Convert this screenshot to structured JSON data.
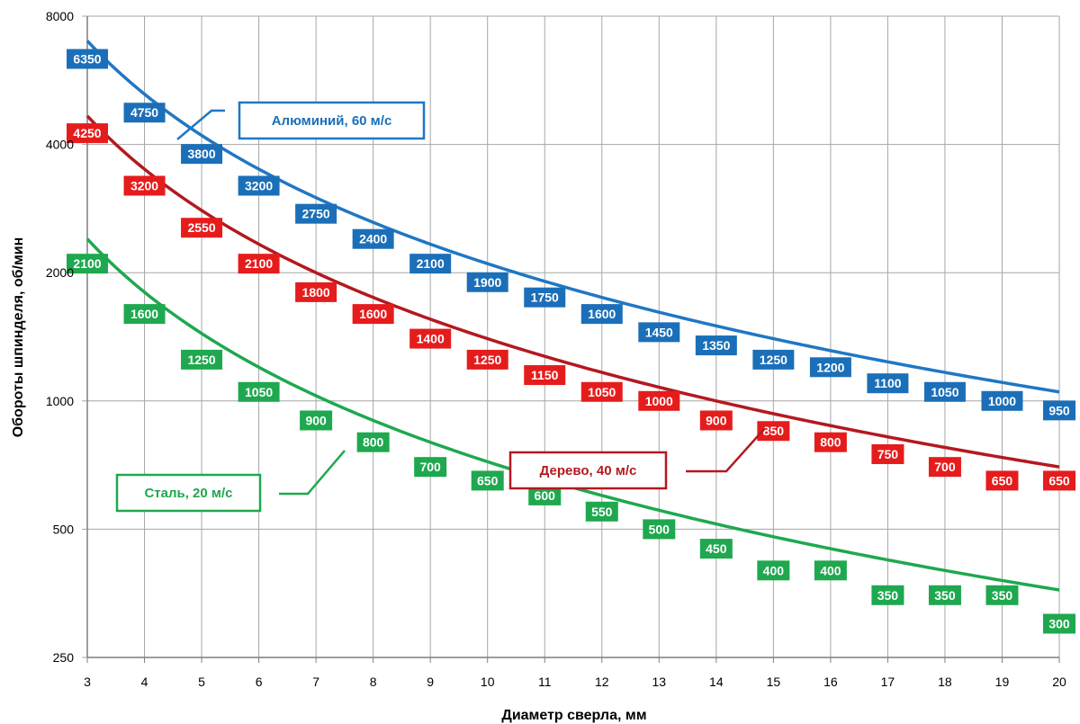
{
  "chart_data": {
    "type": "line",
    "xlabel": "Диаметр сверла, мм",
    "ylabel": "Обороты шпинделя, об/мин",
    "y_scale": "log",
    "x_ticks": [
      "3",
      "4",
      "5",
      "6",
      "7",
      "8",
      "9",
      "10",
      "11",
      "12",
      "13",
      "14",
      "15",
      "16",
      "17",
      "18",
      "19",
      "20"
    ],
    "y_ticks": [
      "250",
      "500",
      "1000",
      "2000",
      "4000",
      "8000"
    ],
    "xlim": [
      3,
      20
    ],
    "ylim": [
      250,
      8000
    ],
    "grid": true,
    "curve_x": [
      3,
      20
    ],
    "series": [
      {
        "name": "Алюминий, 60 м/с",
        "color": "#1f77c4",
        "label_color": "#1b6fb8",
        "curve_constant": 21000,
        "x": [
          3,
          4,
          5,
          6,
          7,
          8,
          9,
          10,
          11,
          12,
          13,
          14,
          15,
          16,
          17,
          18,
          19,
          20
        ],
        "values": [
          6350,
          4750,
          3800,
          3200,
          2750,
          2400,
          2100,
          1900,
          1750,
          1600,
          1450,
          1350,
          1250,
          1200,
          1100,
          1050,
          1000,
          950
        ],
        "labels": [
          "6350",
          "4750",
          "3800",
          "3200",
          "2750",
          "2400",
          "2100",
          "1900",
          "1750",
          "1600",
          "1450",
          "1350",
          "1250",
          "1200",
          "1100",
          "1050",
          "1000",
          "950"
        ]
      },
      {
        "name": "Дерево, 40 м/с",
        "color": "#b3191f",
        "label_color": "#e61c1c",
        "curve_constant": 14000,
        "x": [
          3,
          4,
          5,
          6,
          7,
          8,
          9,
          10,
          11,
          12,
          13,
          14,
          15,
          16,
          17,
          18,
          19,
          20
        ],
        "values": [
          4250,
          3200,
          2550,
          2100,
          1800,
          1600,
          1400,
          1250,
          1150,
          1050,
          1000,
          900,
          850,
          800,
          750,
          700,
          650,
          650
        ],
        "labels": [
          "4250",
          "3200",
          "2550",
          "2100",
          "1800",
          "1600",
          "1400",
          "1250",
          "1150",
          "1050",
          "1000",
          "900",
          "850",
          "800",
          "750",
          "700",
          "650",
          "650"
        ]
      },
      {
        "name": "Сталь, 20 м/с",
        "color": "#1fa84f",
        "label_color": "#1fa84f",
        "curve_constant": 7200,
        "x": [
          3,
          4,
          5,
          6,
          7,
          8,
          9,
          10,
          11,
          12,
          13,
          14,
          15,
          16,
          17,
          18,
          19,
          20
        ],
        "values": [
          2100,
          1600,
          1250,
          1050,
          900,
          800,
          700,
          650,
          600,
          550,
          500,
          450,
          400,
          400,
          350,
          350,
          350,
          300
        ],
        "labels": [
          "2100",
          "1600",
          "1250",
          "1050",
          "900",
          "800",
          "700",
          "650",
          "600",
          "550",
          "500",
          "450",
          "400",
          "400",
          "350",
          "350",
          "350",
          "300"
        ]
      }
    ]
  }
}
